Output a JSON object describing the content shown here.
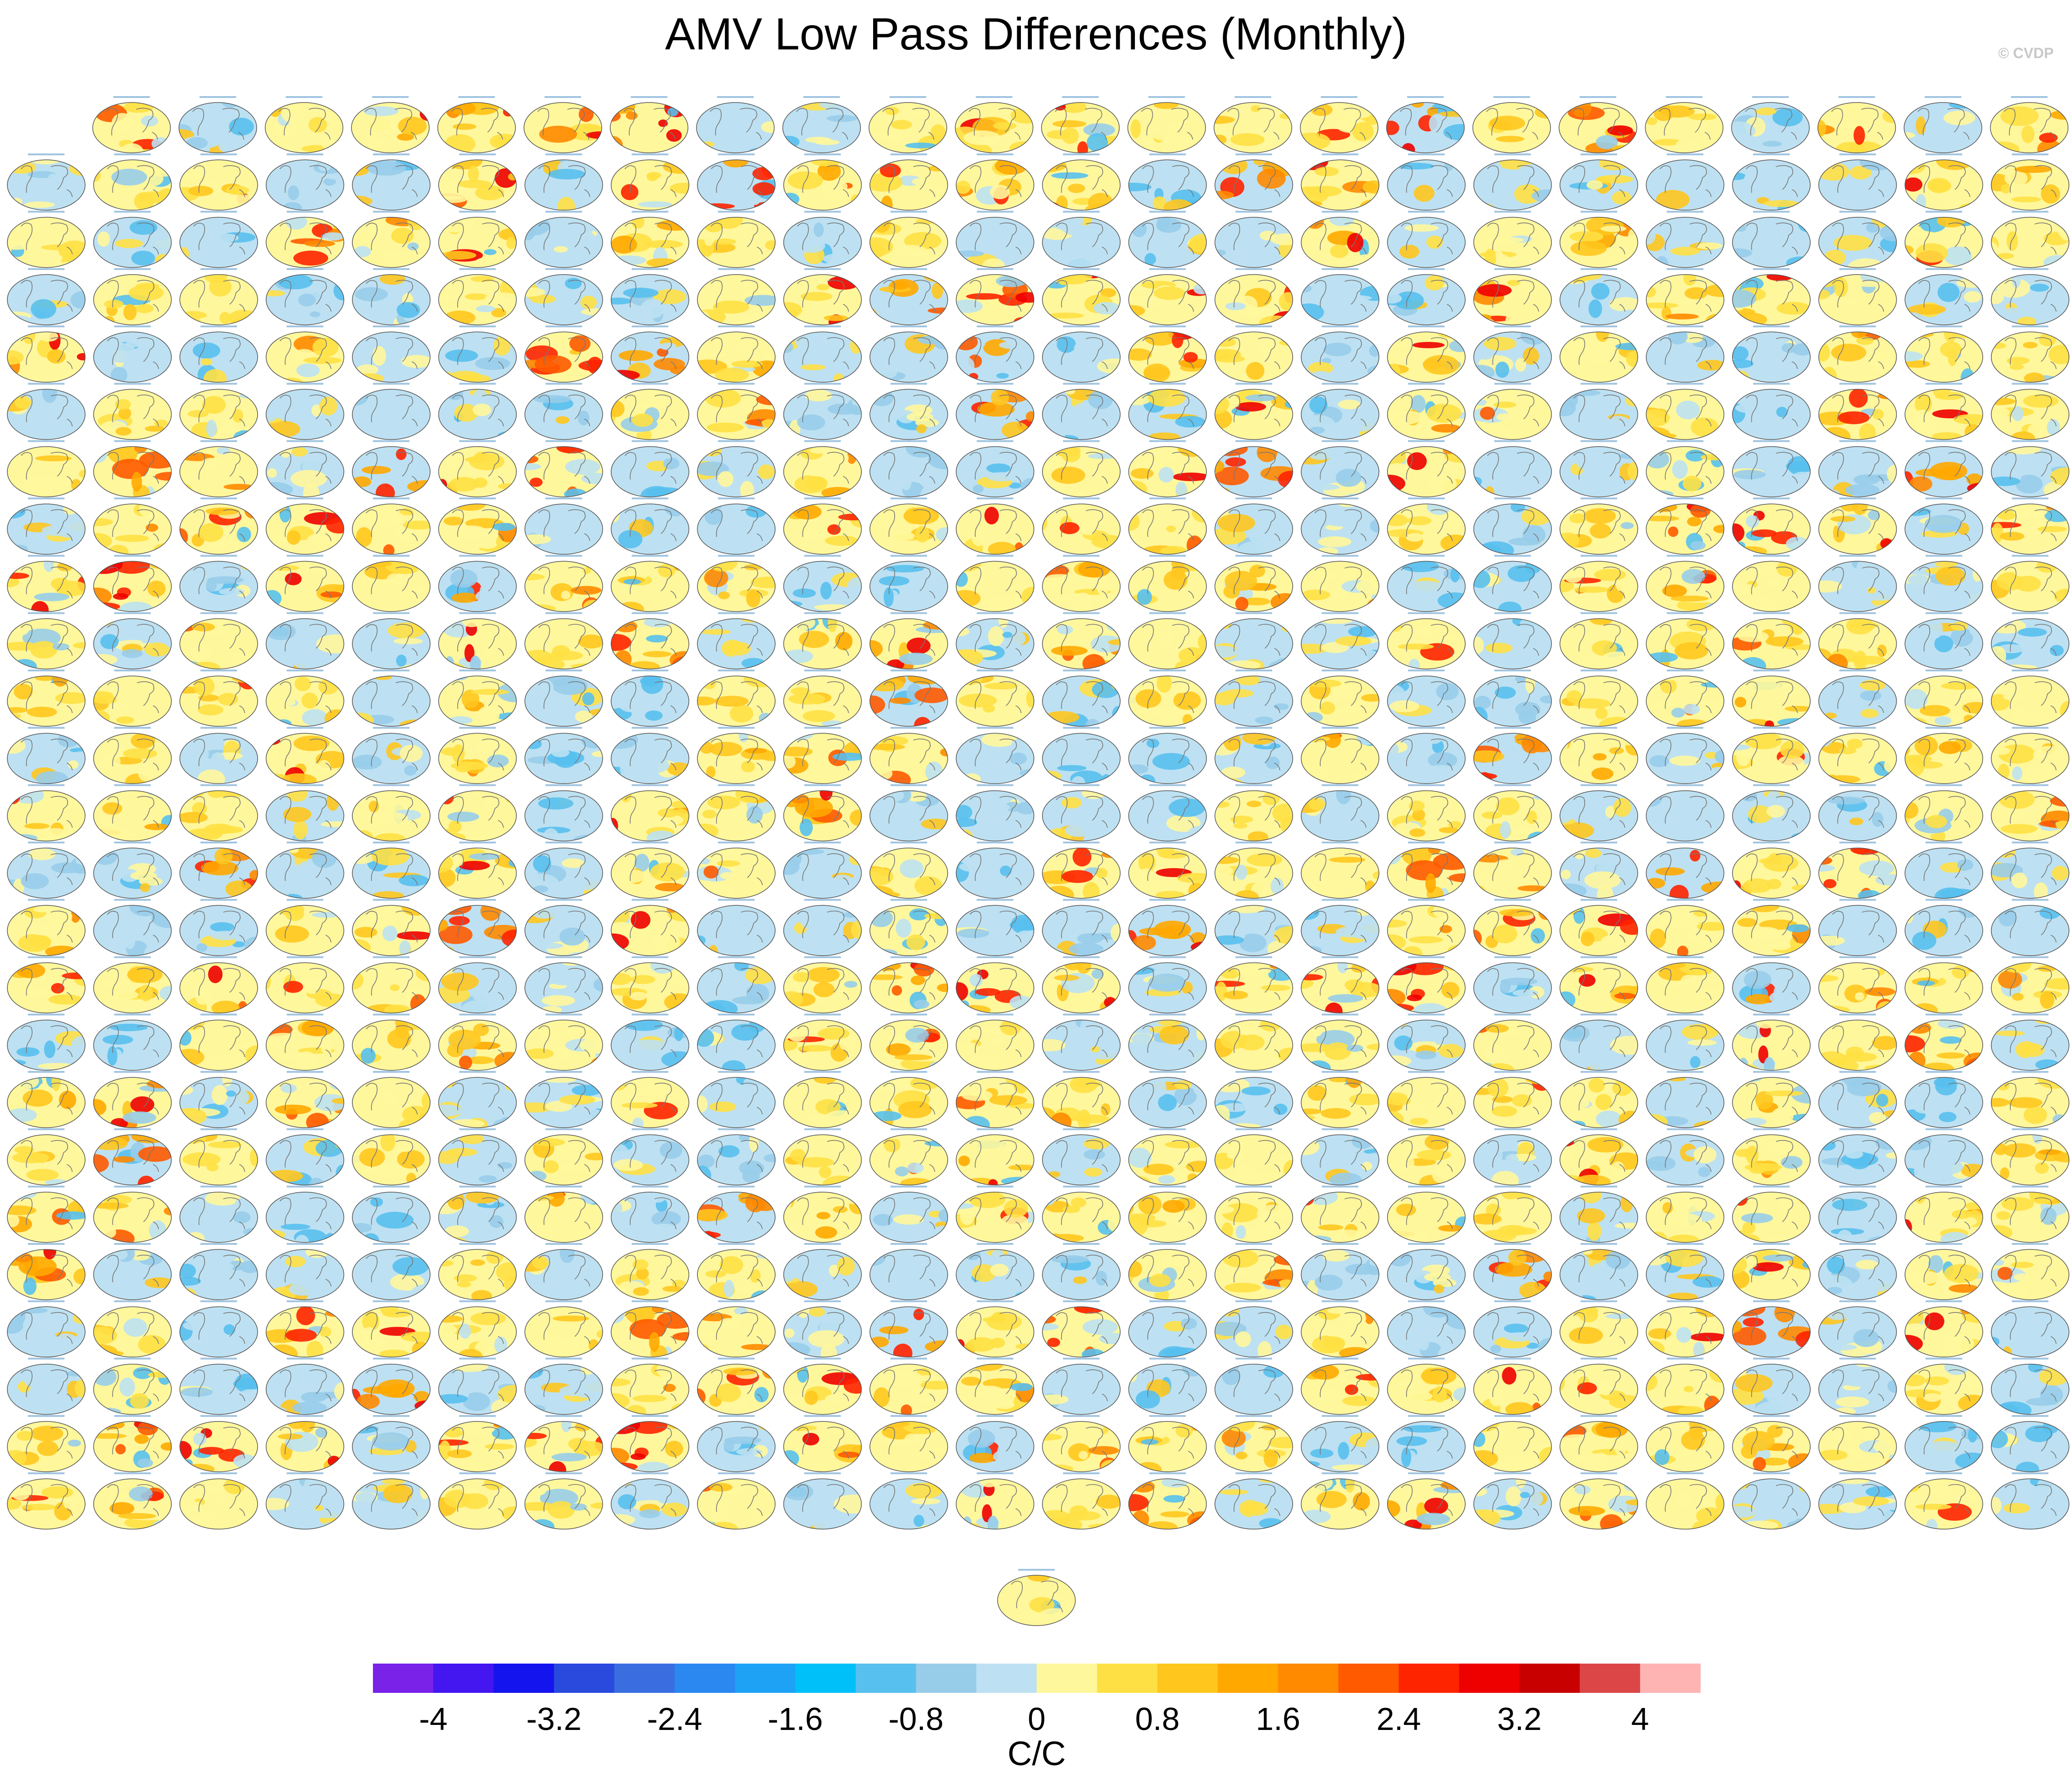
{
  "title": "AMV Low Pass Differences (Monthly)",
  "credit": "© CVDP",
  "chart_data": {
    "type": "heatmap",
    "title": "AMV Low Pass Differences (Monthly)",
    "panel_grid": {
      "rows": 25,
      "columns": 24,
      "first_row_panels": 23,
      "extra_centered_panels": 1
    },
    "colorbar": {
      "label": "C/C",
      "min": -4.4,
      "max": 4.4,
      "step": 0.4,
      "tick_values": [
        -4,
        -3.2,
        -2.4,
        -1.6,
        -0.8,
        0,
        0.8,
        1.6,
        2.4,
        3.2,
        4
      ],
      "tick_labels": [
        "-4",
        "-3.2",
        "-2.4",
        "-1.6",
        "-0.8",
        "0",
        "0.8",
        "1.6",
        "2.4",
        "3.2",
        "4"
      ],
      "colors": [
        "#7a22e8",
        "#4416f0",
        "#1414ee",
        "#2a4ade",
        "#3a6ee0",
        "#2a88f0",
        "#1ea2f6",
        "#00c0fa",
        "#58c0ee",
        "#98cdea",
        "#bde1f2",
        "#fff79c",
        "#ffe044",
        "#ffc61e",
        "#ffa800",
        "#ff8a00",
        "#ff5a00",
        "#ff2400",
        "#ee0000",
        "#c80000",
        "#dc4646",
        "#ffb4b4"
      ]
    }
  }
}
